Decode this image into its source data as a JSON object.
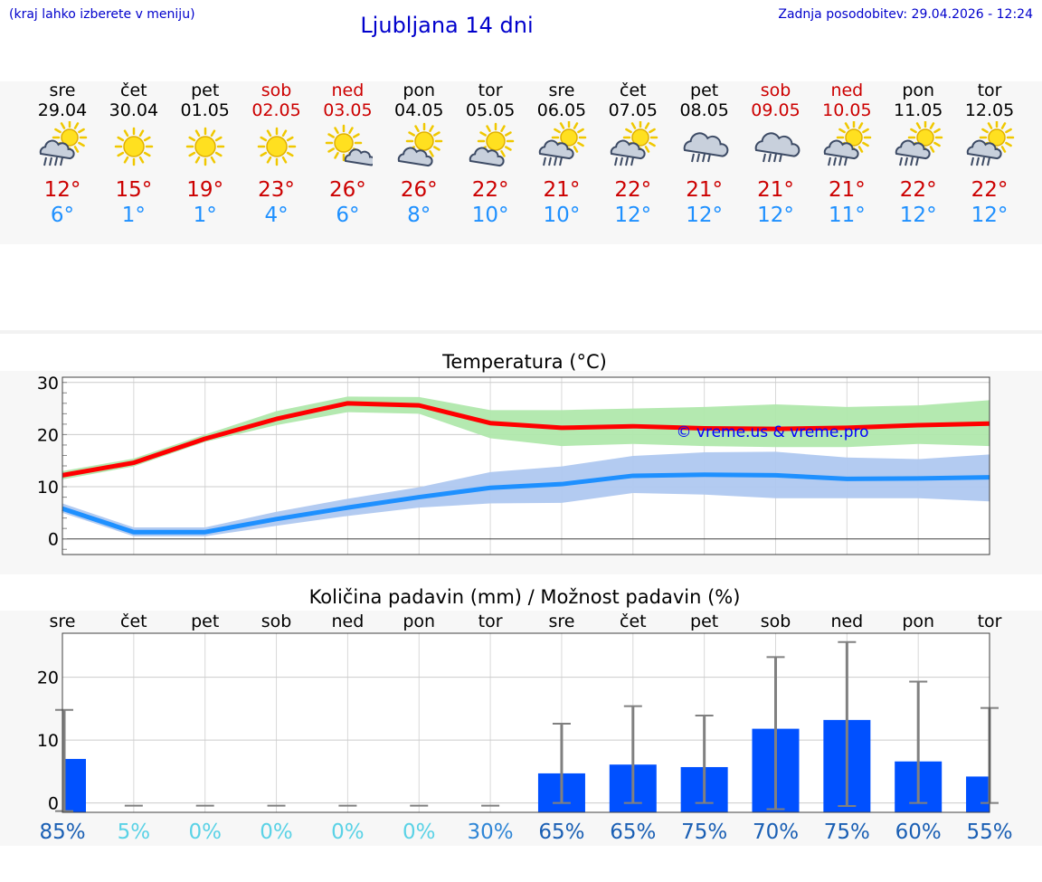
{
  "header": {
    "hint": "(kraj lahko izberete v meniju)",
    "title": "Ljubljana 14 dni",
    "updated": "Zadnja posodobitev: 29.04.2026 - 12:24"
  },
  "days": [
    {
      "name": "sre",
      "date": "29.04",
      "weekend": false,
      "icon": "sun-cloud-rain",
      "tmax": "12°",
      "tmin": "6°"
    },
    {
      "name": "čet",
      "date": "30.04",
      "weekend": false,
      "icon": "sun",
      "tmax": "15°",
      "tmin": "1°"
    },
    {
      "name": "pet",
      "date": "01.05",
      "weekend": false,
      "icon": "sun",
      "tmax": "19°",
      "tmin": "1°"
    },
    {
      "name": "sob",
      "date": "02.05",
      "weekend": true,
      "icon": "sun",
      "tmax": "23°",
      "tmin": "4°"
    },
    {
      "name": "ned",
      "date": "03.05",
      "weekend": true,
      "icon": "sun-small-cloud",
      "tmax": "26°",
      "tmin": "6°"
    },
    {
      "name": "pon",
      "date": "04.05",
      "weekend": false,
      "icon": "sun-cloud",
      "tmax": "26°",
      "tmin": "8°"
    },
    {
      "name": "tor",
      "date": "05.05",
      "weekend": false,
      "icon": "sun-cloud",
      "tmax": "22°",
      "tmin": "10°"
    },
    {
      "name": "sre",
      "date": "06.05",
      "weekend": false,
      "icon": "sun-cloud-rain",
      "tmax": "21°",
      "tmin": "10°"
    },
    {
      "name": "čet",
      "date": "07.05",
      "weekend": false,
      "icon": "sun-cloud-rain",
      "tmax": "22°",
      "tmin": "12°"
    },
    {
      "name": "pet",
      "date": "08.05",
      "weekend": false,
      "icon": "cloud-rain",
      "tmax": "21°",
      "tmin": "12°"
    },
    {
      "name": "sob",
      "date": "09.05",
      "weekend": true,
      "icon": "cloud-rain",
      "tmax": "21°",
      "tmin": "12°"
    },
    {
      "name": "ned",
      "date": "10.05",
      "weekend": true,
      "icon": "sun-cloud-rain",
      "tmax": "21°",
      "tmin": "11°"
    },
    {
      "name": "pon",
      "date": "11.05",
      "weekend": false,
      "icon": "sun-cloud-rain",
      "tmax": "22°",
      "tmin": "12°"
    },
    {
      "name": "tor",
      "date": "12.05",
      "weekend": false,
      "icon": "sun-cloud-rain",
      "tmax": "22°",
      "tmin": "12°"
    }
  ],
  "chart_data": [
    {
      "type": "line",
      "title": "Temperatura (°C)",
      "watermark": "© vreme.us & vreme.pro",
      "xlabel": "",
      "ylabel": "",
      "ylim": [
        -3,
        31
      ],
      "yticks": [
        0,
        10,
        20,
        30
      ],
      "x": [
        0,
        1,
        2,
        3,
        4,
        5,
        6,
        7,
        8,
        9,
        10,
        11,
        12,
        13
      ],
      "series": [
        {
          "name": "max",
          "color": "#ff0000",
          "values": [
            12.2,
            14.6,
            19.2,
            23.0,
            26.0,
            25.6,
            22.2,
            21.3,
            21.6,
            21.2,
            21.1,
            21.3,
            21.8,
            22.1
          ],
          "band_low": [
            11.4,
            13.9,
            18.6,
            21.8,
            24.3,
            24.0,
            19.3,
            17.8,
            18.2,
            17.8,
            17.6,
            17.6,
            18.2,
            17.8
          ],
          "band_high": [
            13.0,
            15.4,
            20.0,
            24.5,
            27.3,
            27.2,
            24.7,
            24.7,
            25.0,
            25.3,
            25.8,
            25.3,
            25.6,
            26.6
          ],
          "band_color": "#b0e8ac"
        },
        {
          "name": "min",
          "color": "#1e90ff",
          "values": [
            5.8,
            1.3,
            1.3,
            3.8,
            6.0,
            8.0,
            9.8,
            10.5,
            12.1,
            12.3,
            12.2,
            11.5,
            11.6,
            11.8
          ],
          "band_low": [
            5.0,
            0.5,
            0.5,
            2.5,
            4.4,
            6.0,
            6.8,
            6.9,
            8.8,
            8.5,
            7.8,
            7.8,
            7.8,
            7.2
          ],
          "band_high": [
            6.8,
            2.2,
            2.2,
            5.2,
            7.7,
            9.9,
            12.8,
            13.9,
            15.9,
            16.6,
            16.7,
            15.6,
            15.3,
            16.2
          ],
          "band_color": "#afc8f0"
        }
      ]
    },
    {
      "type": "bar",
      "title": "Količina padavin (mm) / Možnost padavin (%)",
      "categories": [
        "sre",
        "čet",
        "pet",
        "sob",
        "ned",
        "pon",
        "tor",
        "sre",
        "čet",
        "pet",
        "sob",
        "ned",
        "pon",
        "tor"
      ],
      "ylim": [
        -1.5,
        27
      ],
      "yticks": [
        0,
        10,
        20
      ],
      "values": [
        7.0,
        0,
        0,
        0,
        0,
        0,
        0,
        4.7,
        6.1,
        5.7,
        11.8,
        13.2,
        6.6,
        4.2
      ],
      "err_low": [
        -1.3,
        0,
        0,
        0,
        0,
        0,
        0,
        0,
        0,
        0,
        -1.0,
        -0.5,
        0,
        0
      ],
      "err_high": [
        14.8,
        0,
        0,
        0,
        0,
        0,
        0,
        12.6,
        15.4,
        13.9,
        23.2,
        25.6,
        19.3,
        15.1
      ],
      "bar_color": "#0050ff",
      "probabilities": [
        "85%",
        "5%",
        "0%",
        "0%",
        "0%",
        "0%",
        "30%",
        "65%",
        "65%",
        "75%",
        "70%",
        "75%",
        "60%",
        "55%"
      ],
      "prob_colors": [
        "#1a5fb4",
        "#5ad2e6",
        "#5ad2e6",
        "#5ad2e6",
        "#5ad2e6",
        "#5ad2e6",
        "#2f86d6",
        "#1a5fb4",
        "#1a5fb4",
        "#1a5fb4",
        "#1a5fb4",
        "#1a5fb4",
        "#1a5fb4",
        "#1a5fb4"
      ]
    }
  ]
}
